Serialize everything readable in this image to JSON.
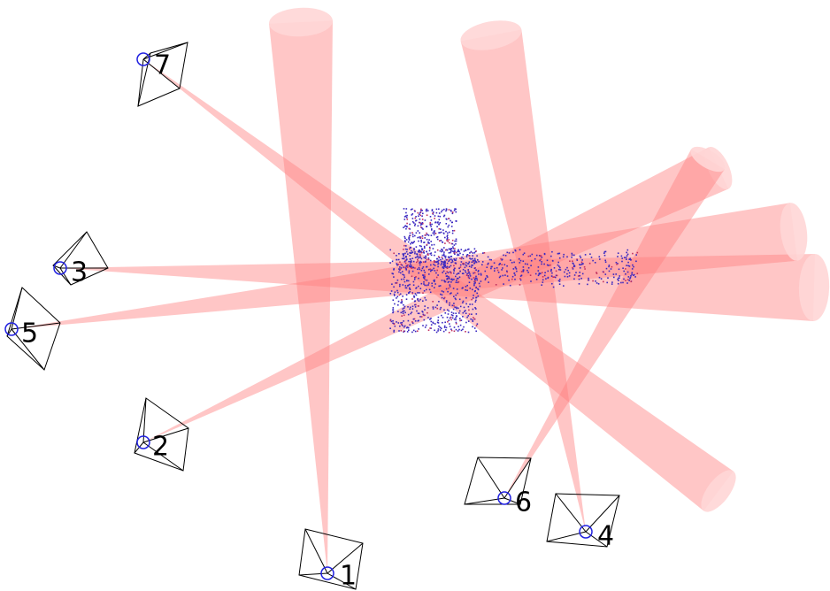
{
  "cameras": [
    {
      "label": "1"
    },
    {
      "label": "2"
    },
    {
      "label": "3"
    },
    {
      "label": "4"
    },
    {
      "label": "5"
    },
    {
      "label": "6"
    },
    {
      "label": "7"
    }
  ]
}
